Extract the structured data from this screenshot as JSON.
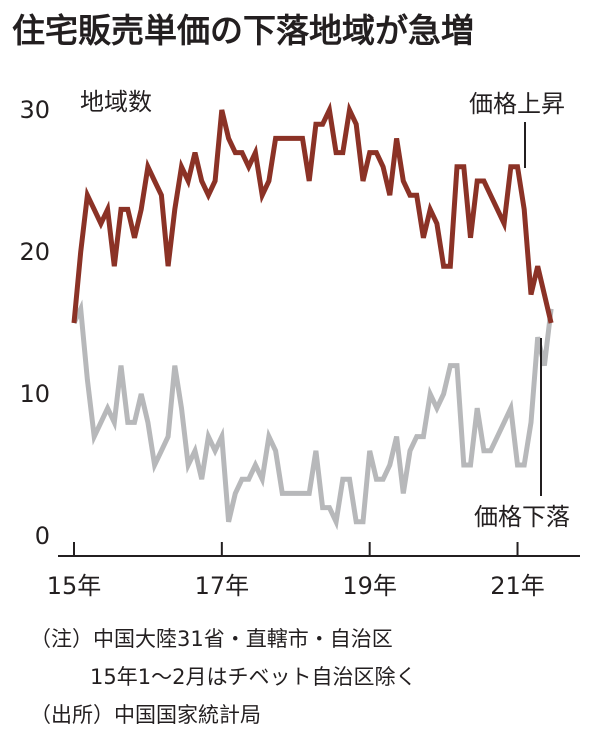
{
  "title": "住宅販売単価の下落地域が急増",
  "notes": {
    "line1": "（注）中国大陸31省・直轄市・自治区",
    "line2": "15年1～2月はチベット自治区除く",
    "line3": "（出所）中国国家統計局"
  },
  "colors": {
    "rise": "#8b3226",
    "fall": "#b7b8ba",
    "axis": "#231f20"
  },
  "chart_data": {
    "type": "line",
    "title": "住宅販売単価の下落地域が急増",
    "ylabel": "地域数",
    "ylim": [
      0,
      32
    ],
    "yticks": [
      0,
      10,
      20,
      30
    ],
    "x_ticks": [
      {
        "label": "15年",
        "index": 0
      },
      {
        "label": "17年",
        "index": 22
      },
      {
        "label": "19年",
        "index": 44
      },
      {
        "label": "21年",
        "index": 66
      }
    ],
    "series": [
      {
        "name": "価格上昇",
        "color": "#8b3226",
        "values": [
          15,
          20,
          24,
          23,
          22,
          23,
          19,
          23,
          23,
          21,
          23,
          26,
          25,
          24,
          19,
          23,
          26,
          25,
          27,
          25,
          24,
          25,
          30,
          28,
          27,
          27,
          26,
          27,
          24,
          25,
          28,
          28,
          28,
          28,
          28,
          25,
          29,
          29,
          30,
          27,
          27,
          30,
          29,
          25,
          27,
          27,
          26,
          24,
          28,
          25,
          24,
          24,
          21,
          23,
          22,
          19,
          19,
          26,
          26,
          21,
          25,
          25,
          24,
          23,
          22,
          26,
          26,
          23,
          17,
          19,
          17,
          15
        ]
      },
      {
        "name": "価格下落",
        "color": "#b7b8ba",
        "values": [
          15,
          16,
          11,
          7,
          8,
          9,
          8,
          12,
          8,
          8,
          10,
          8,
          5,
          6,
          7,
          12,
          9,
          5,
          6,
          4,
          7,
          6,
          7,
          1,
          3,
          4,
          4,
          5,
          4,
          7,
          6,
          3,
          3,
          3,
          3,
          3,
          6,
          2,
          2,
          1,
          4,
          4,
          1,
          1,
          6,
          4,
          4,
          5,
          7,
          3,
          6,
          7,
          7,
          10,
          9,
          10,
          12,
          12,
          5,
          5,
          9,
          6,
          6,
          7,
          8,
          9,
          5,
          5,
          8,
          14,
          12,
          16
        ]
      }
    ]
  }
}
